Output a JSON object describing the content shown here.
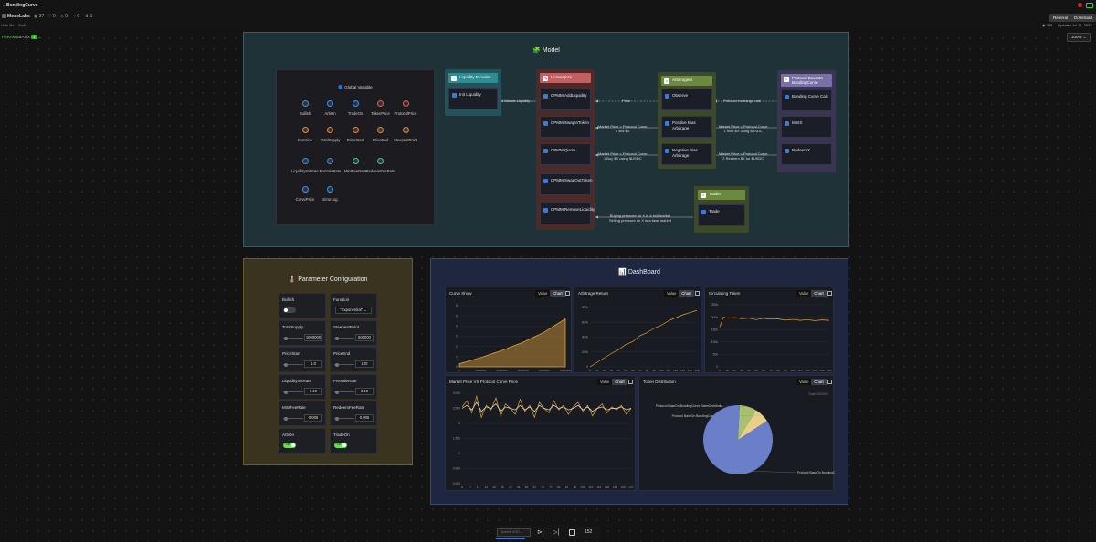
{
  "header": {
    "title": "BondingCurve",
    "org": "ModeLabs",
    "stats": [
      "37",
      "0",
      "0",
      "0",
      "1"
    ],
    "subline": [
      "Hide file",
      "Staff"
    ],
    "referral": "Referral",
    "download": "Download",
    "views": "278",
    "updated_label": "Updated",
    "updated_date": "Jul 11, 2023",
    "notif_count": "1"
  },
  "toolbar": {
    "left_label": "PARAMS&AUX",
    "left_badge": "1",
    "zoom": "100%"
  },
  "model": {
    "title": "🧩 Model",
    "global_title": "🔵 Global Variable",
    "globals": [
      {
        "label": "Bullish",
        "color": "#4a90e2"
      },
      {
        "label": "ArbOn",
        "color": "#4a90e2"
      },
      {
        "label": "TradeOn",
        "color": "#4a90e2"
      },
      {
        "label": "TokenPrice",
        "color": "#e05a5a"
      },
      {
        "label": "ProtocolPrice",
        "color": "#e05a5a"
      },
      {
        "label": "Function",
        "color": "#e08a3a"
      },
      {
        "label": "TotalSupply",
        "color": "#e08a3a"
      },
      {
        "label": "PriceStart",
        "color": "#e08a3a"
      },
      {
        "label": "PriceEnd",
        "color": "#e08a3a"
      },
      {
        "label": "SteepestPoint",
        "color": "#e08a3a"
      },
      {
        "label": "LiquidityInitRate",
        "color": "#4a90e2"
      },
      {
        "label": "PreSaleRate",
        "color": "#4a90e2"
      },
      {
        "label": "MintFeeRate",
        "color": "#4ac0a0"
      },
      {
        "label": "RedeemFeeRate",
        "color": "#4ac0a0"
      },
      {
        "label": "CurvePrice",
        "color": "#4a90e2"
      },
      {
        "label": "ErrorLog",
        "color": "#4a90e2"
      }
    ],
    "nodes": {
      "liquidity_provider": {
        "title": "Liquidity Provider",
        "items": [
          "Init Liquidity"
        ]
      },
      "uniswap": {
        "title": "UniswapV2",
        "items": [
          "CPMM.AddLiquidity",
          "CPMM.SwapInToken",
          "CPMM.Quote",
          "CPMM.SwapOutToken",
          "CPMM.RemoveLiquidity"
        ]
      },
      "arbitrageur": {
        "title": "Arbitrageur",
        "items": [
          "Observe",
          "Positive Bias Arbitrage",
          "Negative Bias Arbitrage"
        ]
      },
      "protocol": {
        "title": "Protocol BaseOn BondingCurve",
        "items": [
          "Bonding Curve Calc",
          "MintX",
          "RedeemX"
        ]
      },
      "trader": {
        "title": "Trader",
        "items": [
          "Trade"
        ]
      }
    },
    "edges": {
      "add_liquidity": "Add Market Liquidity",
      "price": "Price",
      "protocol_rate": "Protocol exchange rate",
      "pos_sell": "Market Price > Protocol Curve\n2 sell $X",
      "pos_mint": "Market Price > Protocol Curve\n1 mint $X using $USDC",
      "neg_buy": "Market Price < Protocol Curve\n1 Buy $X using $USDC",
      "neg_redeem": "Market Price < Protocol Curve\n2 Redeem $X for $USDC",
      "trade": "Buying pressure on X in a bull market\nSelling pressure on X in a bear market"
    }
  },
  "params": {
    "title": "🌡️ Parameter Configuration",
    "cells": [
      {
        "label": "Bullish",
        "kind": "toggle",
        "value": "",
        "on": false
      },
      {
        "label": "Function",
        "kind": "select",
        "value": "\"Exponential\""
      },
      {
        "label": "TotalSupply",
        "kind": "slider",
        "value": "1000000"
      },
      {
        "label": "SteepestPoint",
        "kind": "slider",
        "value": "500000"
      },
      {
        "label": "PriceStart",
        "kind": "slider",
        "value": "1.0"
      },
      {
        "label": "PriceEnd",
        "kind": "slider",
        "value": "100"
      },
      {
        "label": "LiquidityInitRate",
        "kind": "slider",
        "value": "0.10"
      },
      {
        "label": "PreSaleRate",
        "kind": "slider",
        "value": "0.10"
      },
      {
        "label": "MintFeeRate",
        "kind": "slider",
        "value": "0.005"
      },
      {
        "label": "RedeemFeeRate",
        "kind": "slider",
        "value": "0.005"
      },
      {
        "label": "ArbOn",
        "kind": "toggle",
        "value": "True",
        "on": true
      },
      {
        "label": "TradeOn",
        "kind": "toggle",
        "value": "True",
        "on": true
      }
    ]
  },
  "dashboard": {
    "title": "📊 DashBoard",
    "value_label": "Value",
    "chart_label": "Chart",
    "cards": {
      "curve": {
        "title": "Curve Show"
      },
      "arb": {
        "title": "Arbitrage Return"
      },
      "circ": {
        "title": "Circulating Token"
      },
      "mkt": {
        "title": "Market Price VS Protocol Curve Price"
      },
      "dist": {
        "title": "Token Distribution",
        "total": "Total:1000000"
      }
    }
  },
  "chart_data": [
    {
      "type": "area",
      "title": "Curve Show",
      "x": [
        0,
        1000000,
        2000000,
        3000000,
        4000000,
        5000000
      ],
      "xticks": [
        "0",
        "1000000",
        "2000000",
        "3000000",
        "4000000",
        "5000000"
      ],
      "y": [
        0.3,
        0.9,
        1.6,
        2.4,
        3.4,
        4.7
      ],
      "ylim": [
        0,
        6
      ],
      "yticks": [
        "0",
        "1",
        "2",
        "3",
        "4",
        "5",
        "6"
      ],
      "color": "#e0a23a"
    },
    {
      "type": "line",
      "title": "Arbitrage Return",
      "x": [
        0,
        10,
        20,
        30,
        40,
        50,
        60,
        70,
        80,
        90,
        100,
        110,
        120,
        130,
        140,
        150
      ],
      "xticks": [
        "0",
        "10",
        "20",
        "30",
        "40",
        "50",
        "60",
        "70",
        "80",
        "90",
        "100",
        "110",
        "120",
        "130",
        "140",
        "150"
      ],
      "y": [
        0,
        60000,
        120000,
        180000,
        230000,
        300000,
        340000,
        420000,
        460000,
        520000,
        560000,
        620000,
        660000,
        700000,
        730000,
        760000
      ],
      "ylim": [
        0,
        800000
      ],
      "yticks": [
        "0",
        "200k",
        "400k",
        "600k",
        "800k"
      ],
      "color": "#e0a23a"
    },
    {
      "type": "line",
      "title": "Circulating Token",
      "x": [
        0,
        5,
        10,
        20,
        30,
        40,
        50,
        60,
        70,
        80,
        90,
        100,
        110,
        120,
        130,
        140,
        150
      ],
      "xticks": [
        "0",
        "10",
        "20",
        "30",
        "40",
        "50",
        "60",
        "70",
        "80",
        "90",
        "100",
        "110",
        "120",
        "130",
        "140",
        "150"
      ],
      "y": [
        160000,
        200000,
        196000,
        198000,
        194000,
        196000,
        190000,
        195000,
        192000,
        193000,
        188000,
        191000,
        187000,
        190000,
        186000,
        189000,
        187000
      ],
      "ylim": [
        0,
        250000
      ],
      "yticks": [
        "0",
        "50k",
        "100k",
        "150k",
        "200k",
        "250k"
      ],
      "color": "#e0a23a"
    },
    {
      "type": "line",
      "title": "Market Price VS Protocol Curve Price",
      "xticks": [
        "0",
        "7",
        "14",
        "21",
        "28",
        "35",
        "42",
        "49",
        "56",
        "63",
        "70",
        "77",
        "84",
        "91",
        "98",
        "105",
        "112",
        "119",
        "126",
        "133",
        "140",
        "147"
      ],
      "ylim": [
        0,
        3.0
      ],
      "yticks": [
        "0.000",
        "0.500",
        "1",
        "1.500",
        "2",
        "2.500",
        "3.000"
      ],
      "series": [
        {
          "color": "#e0a23a",
          "values": [
            2.55,
            2.75,
            2.35,
            2.9,
            2.2,
            2.6,
            2.45,
            2.85,
            2.25,
            2.65,
            2.5,
            2.3,
            2.8,
            2.4,
            2.6,
            2.2,
            2.7,
            2.5,
            2.35,
            2.75,
            2.45,
            2.6,
            2.3,
            2.55,
            2.7,
            2.4,
            2.6,
            2.25,
            2.5,
            2.65,
            2.35,
            2.55,
            2.45,
            2.6,
            2.3,
            2.5
          ]
        },
        {
          "color": "#eee8c8",
          "values": [
            2.5,
            2.6,
            2.45,
            2.7,
            2.4,
            2.55,
            2.5,
            2.65,
            2.4,
            2.55,
            2.5,
            2.45,
            2.6,
            2.45,
            2.55,
            2.4,
            2.6,
            2.5,
            2.45,
            2.6,
            2.5,
            2.55,
            2.45,
            2.5,
            2.6,
            2.45,
            2.55,
            2.4,
            2.5,
            2.55,
            2.45,
            2.5,
            2.5,
            2.55,
            2.45,
            2.5
          ]
        }
      ]
    },
    {
      "type": "pie",
      "title": "Token Distribution",
      "slices": [
        {
          "label": "Protocol BaseOn BondingCurve.TokenDistributio...",
          "value": 0.08,
          "color": "#a8c070"
        },
        {
          "label": "Protocol BaseOn BondingCurve.To...",
          "value": 0.07,
          "color": "#e8d088"
        },
        {
          "label": "Protocol BaseOn BondingCurve.TokenD...",
          "value": 0.85,
          "color": "#6b7fc8"
        }
      ]
    }
  ],
  "playback": {
    "speed": "Speed: 5/20",
    "counter": "152"
  }
}
